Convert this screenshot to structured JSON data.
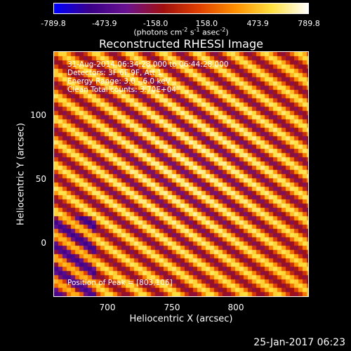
{
  "colorbar": {
    "ticks": [
      "-789.8",
      "-473.9",
      "-158.0",
      "158.0",
      "473.9",
      "789.8"
    ],
    "units_prefix": "(photons cm",
    "units_exp1": "-2",
    "units_mid": " s",
    "units_exp2": "-1",
    "units_mid2": " asec",
    "units_exp3": "-2",
    "units_suffix": ")",
    "colors": [
      "#0000ff",
      "#3b0088",
      "#6a1290",
      "#a01010",
      "#e04000",
      "#ff9000",
      "#ffe040",
      "#ffffff"
    ]
  },
  "title": "Reconstructed RHESSI Image",
  "info": {
    "line1": "31-Aug-2014 06:34:28.000 to 06:44:28.000",
    "line2": "Detectors: 3F 6F 9F, Att 1",
    "line3": "Energy Range: 3.0 - 6.0 keV",
    "line4": "Clean    Total counts: 3.70E+04",
    "peak": "Position of Peak = [803,106]"
  },
  "chart_data": {
    "type": "heatmap",
    "title": "Reconstructed RHESSI Image",
    "xlabel": "Heliocentric X (arcsec)",
    "ylabel": "Heliocentric Y (arcsec)",
    "xlim": [
      659,
      855
    ],
    "ylim": [
      -44,
      149
    ],
    "x_ticks": [
      "700",
      "750",
      "800"
    ],
    "x_tick_values": [
      700,
      750,
      800
    ],
    "y_ticks": [
      "0",
      "50",
      "100"
    ],
    "y_tick_values": [
      0,
      50,
      100
    ],
    "value_range": [
      -789.8,
      789.8
    ],
    "peak": [
      803,
      106
    ],
    "grid": false,
    "pattern": {
      "stripe_period_arcsec": 15,
      "stripe_angle_deg": -35
    }
  },
  "timestamp": "25-Jan-2017 06:23"
}
